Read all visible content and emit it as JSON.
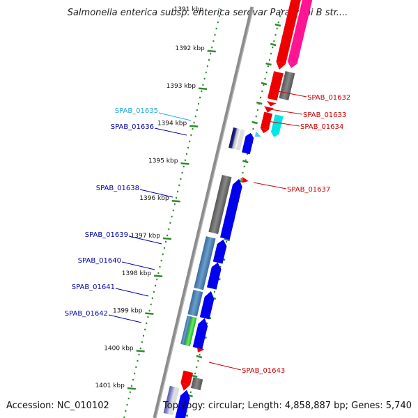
{
  "title": "Salmonella enterica subsp. enterica serovar Paratyphi B str....",
  "footer": {
    "accession": "Accession: NC_010102",
    "topology": "Topology: circular; Length: 4,858,887 bp; Genes: 5,740"
  },
  "ruler": {
    "top_partial": "1391 kbp",
    "ticks": [
      "1392 kbp",
      "1393 kbp",
      "1394 kbp",
      "1395 kbp",
      "1396 kbp",
      "1397 kbp",
      "1398 kbp",
      "1399 kbp",
      "1400 kbp",
      "1401 kbp"
    ]
  },
  "genes_left": [
    "SPAB_01635",
    "SPAB_01636",
    "SPAB_01638",
    "SPAB_01639",
    "SPAB_01640",
    "SPAB_01641",
    "SPAB_01642"
  ],
  "genes_right": [
    "SPAB_01632",
    "SPAB_01633",
    "SPAB_01634",
    "SPAB_01637",
    "SPAB_01643"
  ],
  "colors": {
    "forward_label": "#0000aa",
    "forward_label_light": "#22aadd",
    "reverse_label": "#cc0000",
    "tick_green": "#2e8b2e",
    "blue_arrow": "#0000ee",
    "red_arrow": "#ee0000",
    "magenta_arrow": "#ff1493",
    "cyan_arrow": "#00e5e5",
    "gray_feature": "#666666",
    "steelblue_feature": "#4a7fb0",
    "green_feature": "#33cc33",
    "backbone": "#8c8c8c"
  }
}
